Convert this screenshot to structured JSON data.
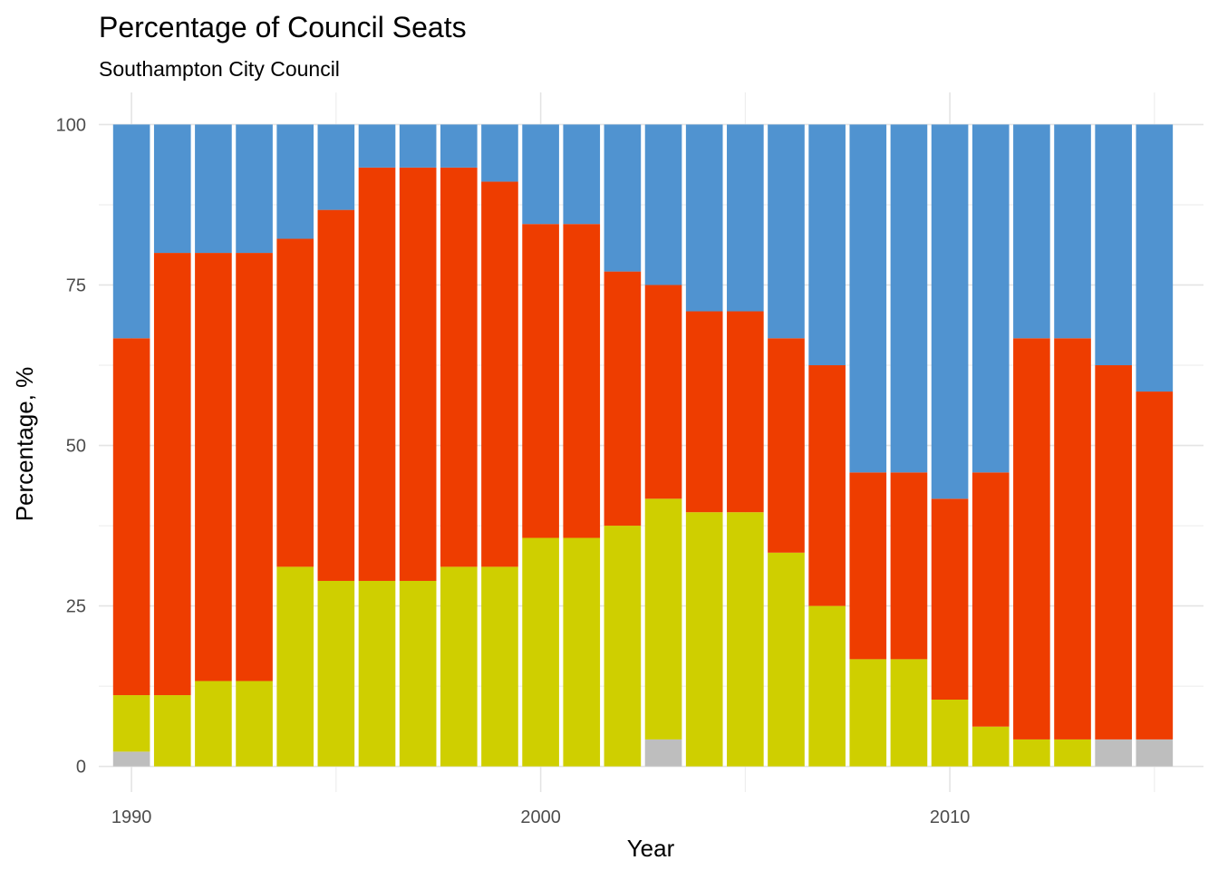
{
  "chart_data": {
    "type": "bar",
    "stacked": true,
    "title": "Percentage of Council Seats",
    "subtitle": "Southampton City Council",
    "xlabel": "Year",
    "ylabel": "Percentage, %",
    "x": [
      1990,
      1991,
      1992,
      1993,
      1994,
      1995,
      1996,
      1997,
      1998,
      1999,
      2000,
      2001,
      2002,
      2003,
      2004,
      2005,
      2006,
      2007,
      2008,
      2009,
      2010,
      2011,
      2012,
      2013,
      2014,
      2015
    ],
    "xticks": [
      1990,
      2000,
      2010
    ],
    "xlim": [
      1989.2,
      2016.2
    ],
    "yticks": [
      0,
      25,
      50,
      75,
      100
    ],
    "ylim": [
      -4,
      105
    ],
    "grid": true,
    "legend": "none",
    "series": [
      {
        "color": "#BEBEBE",
        "values": [
          2.3,
          0,
          0,
          0,
          0,
          0,
          0,
          0,
          0,
          0,
          0,
          0,
          0,
          4.2,
          0,
          0,
          0,
          0,
          0,
          0,
          0,
          0,
          0,
          0,
          4.2,
          4.2
        ]
      },
      {
        "color": "#CFCF00",
        "values": [
          8.8,
          11.1,
          13.3,
          13.3,
          31.1,
          28.9,
          28.9,
          28.9,
          31.1,
          31.1,
          35.6,
          35.6,
          37.5,
          37.5,
          39.6,
          39.6,
          33.3,
          25.0,
          16.7,
          16.7,
          10.4,
          6.2,
          4.2,
          4.2,
          0,
          0
        ]
      },
      {
        "color": "#EE3D00",
        "values": [
          55.6,
          68.9,
          66.7,
          66.7,
          51.1,
          57.8,
          64.4,
          64.4,
          62.2,
          60.0,
          48.9,
          48.9,
          39.6,
          33.3,
          31.3,
          31.3,
          33.4,
          37.5,
          29.1,
          29.1,
          31.3,
          39.6,
          62.5,
          62.5,
          58.3,
          54.2
        ]
      },
      {
        "color": "#5093D0",
        "values": [
          33.3,
          20.0,
          20.0,
          20.0,
          17.8,
          13.3,
          6.7,
          6.7,
          6.7,
          8.9,
          15.5,
          15.5,
          22.9,
          25.0,
          29.1,
          29.1,
          33.3,
          37.5,
          54.2,
          54.2,
          58.3,
          54.2,
          33.3,
          33.3,
          37.5,
          41.6
        ]
      }
    ]
  }
}
